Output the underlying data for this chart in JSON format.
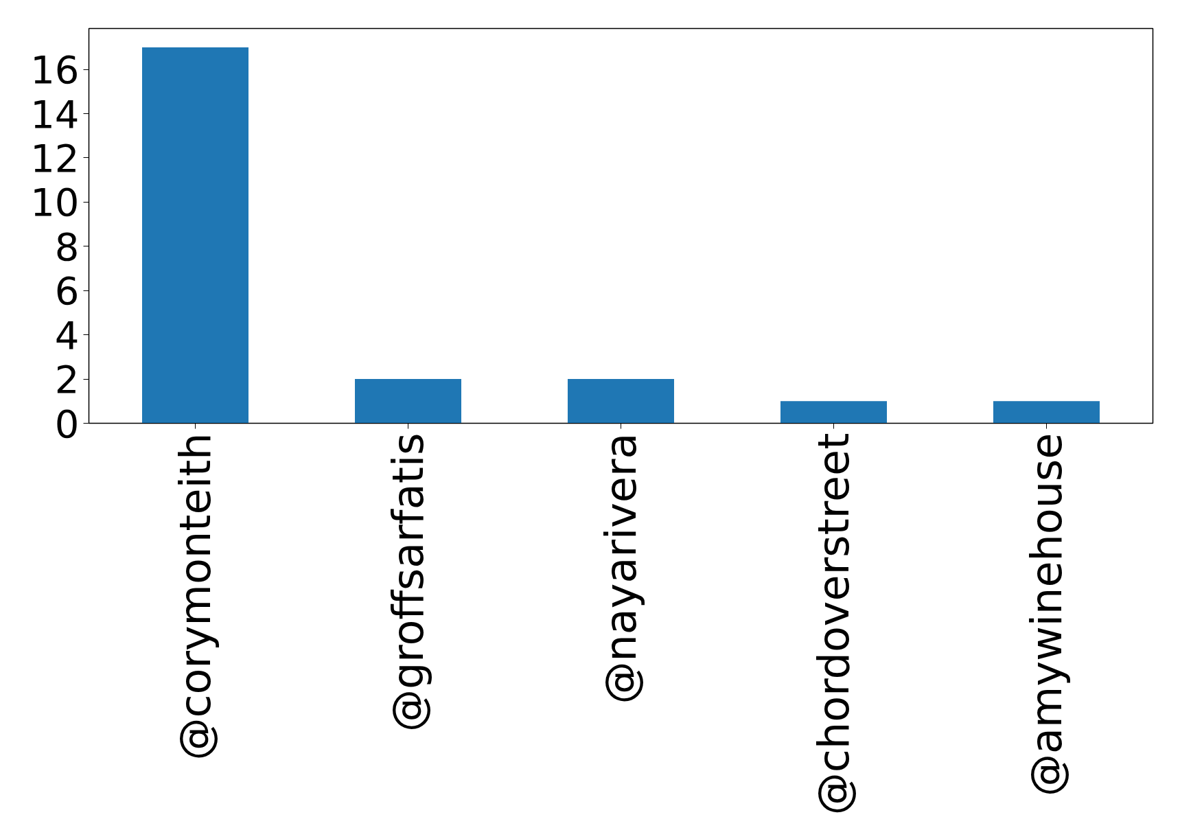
{
  "chart_data": {
    "type": "bar",
    "categories": [
      "@corymonteith",
      "@groffsarfatis",
      "@nayarivera",
      "@chordoverstreet",
      "@amywinehouse"
    ],
    "values": [
      17,
      2,
      2,
      1,
      1
    ],
    "color": "#1f77b4",
    "ylim": [
      0,
      17.85
    ],
    "yticks": [
      0,
      2,
      4,
      6,
      8,
      10,
      12,
      14,
      16
    ],
    "grid": false
  }
}
